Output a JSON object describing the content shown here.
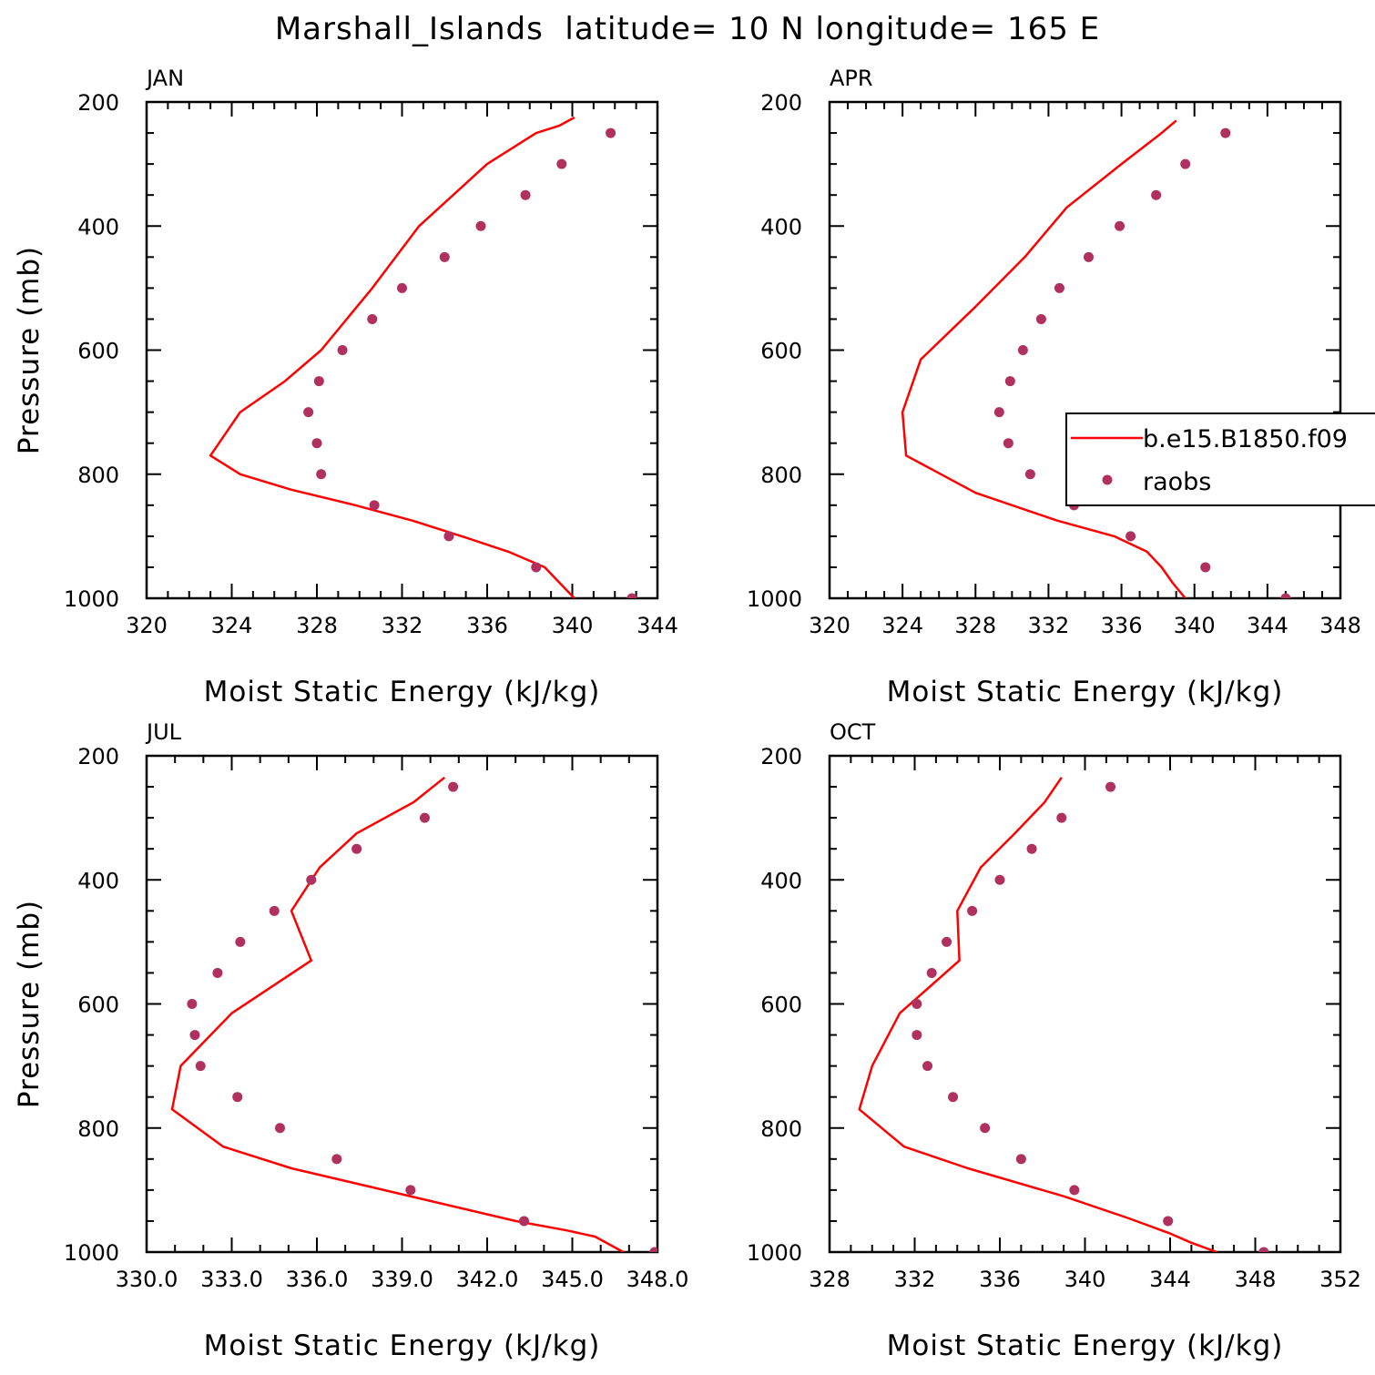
{
  "title": "Marshall_Islands  latitude= 10 N longitude= 165 E",
  "colors": {
    "model": "#ff0000",
    "obs": "#b03060"
  },
  "chart_data": [
    {
      "type": "scatter",
      "panel_label": "JAN",
      "xlabel": "Moist Static Energy (kJ/kg)",
      "ylabel": "Pressure (mb)",
      "xlim": [
        320,
        344
      ],
      "ylim": [
        1000,
        200
      ],
      "xticks": [
        "320",
        "324",
        "328",
        "332",
        "336",
        "340",
        "344"
      ],
      "yticks": [
        "200",
        "400",
        "600",
        "800",
        "1000"
      ],
      "x_minor": 1,
      "y_minor": 50,
      "legend": null,
      "series": [
        {
          "name": "b.e15.B1850.f09",
          "type": "line",
          "x": [
            340.1,
            339.4,
            338.7,
            337.0,
            334.8,
            332.5,
            329.8,
            326.8,
            324.4,
            323.0,
            324.4,
            326.5,
            328.2,
            330.6,
            332.8,
            336.0,
            338.3,
            339.4,
            340.1
          ],
          "y": [
            1000,
            975,
            950,
            925,
            900,
            875,
            850,
            825,
            800,
            770,
            700,
            650,
            600,
            500,
            400,
            300,
            250,
            238,
            225
          ]
        },
        {
          "name": "raobs",
          "type": "scatter",
          "x": [
            342.8,
            338.3,
            334.2,
            330.7,
            328.2,
            328.0,
            327.6,
            328.1,
            329.2,
            330.6,
            332.0,
            334.0,
            335.7,
            337.8,
            339.5,
            341.8
          ],
          "y": [
            1000,
            950,
            900,
            850,
            800,
            750,
            700,
            650,
            600,
            550,
            500,
            450,
            400,
            350,
            300,
            250
          ]
        }
      ]
    },
    {
      "type": "scatter",
      "panel_label": "APR",
      "xlabel": "Moist Static Energy (kJ/kg)",
      "ylabel": "",
      "xlim": [
        320,
        348
      ],
      "ylim": [
        1000,
        200
      ],
      "xticks": [
        "320",
        "324",
        "328",
        "332",
        "336",
        "340",
        "344",
        "348"
      ],
      "yticks": [
        "200",
        "400",
        "600",
        "800",
        "1000"
      ],
      "x_minor": 1,
      "y_minor": 50,
      "legend": {
        "placement": "right",
        "entries": [
          "b.e15.B1850.f09",
          "raobs"
        ]
      },
      "series": [
        {
          "name": "b.e15.B1850.f09",
          "type": "line",
          "x": [
            339.5,
            338.8,
            338.2,
            337.4,
            335.6,
            332.5,
            328.0,
            324.2,
            324.0,
            325.0,
            328.0,
            330.7,
            333.0,
            336.0,
            338.2,
            339.0
          ],
          "y": [
            1000,
            975,
            950,
            925,
            900,
            875,
            830,
            770,
            700,
            615,
            530,
            450,
            370,
            300,
            250,
            230
          ]
        },
        {
          "name": "raobs",
          "type": "scatter",
          "x": [
            345.0,
            340.6,
            336.5,
            333.4,
            331.0,
            329.8,
            329.3,
            329.9,
            330.6,
            331.6,
            332.6,
            334.2,
            335.9,
            337.9,
            339.5,
            341.7
          ],
          "y": [
            1000,
            950,
            900,
            850,
            800,
            750,
            700,
            650,
            600,
            550,
            500,
            450,
            400,
            350,
            300,
            250
          ]
        }
      ]
    },
    {
      "type": "scatter",
      "panel_label": "JUL",
      "xlabel": "Moist Static Energy (kJ/kg)",
      "ylabel": "Pressure (mb)",
      "xlim": [
        330,
        348
      ],
      "ylim": [
        1000,
        200
      ],
      "xticks": [
        "330.0",
        "333.0",
        "336.0",
        "339.0",
        "342.0",
        "345.0",
        "348.0"
      ],
      "yticks": [
        "200",
        "400",
        "600",
        "800",
        "1000"
      ],
      "x_minor": 1,
      "y_minor": 50,
      "legend": null,
      "series": [
        {
          "name": "b.e15.B1850.f09",
          "type": "line",
          "x": [
            346.8,
            345.8,
            344.8,
            343.0,
            335.1,
            332.7,
            330.9,
            331.2,
            333.0,
            335.8,
            335.1,
            336.1,
            337.4,
            339.4,
            340.5
          ],
          "y": [
            1000,
            975,
            965,
            950,
            865,
            830,
            770,
            700,
            615,
            530,
            450,
            380,
            325,
            275,
            235
          ]
        },
        {
          "name": "raobs",
          "type": "scatter",
          "x": [
            347.9,
            343.3,
            339.3,
            336.7,
            334.7,
            333.2,
            331.9,
            331.7,
            331.6,
            332.5,
            333.3,
            334.5,
            335.8,
            337.4,
            339.8,
            340.8
          ],
          "y": [
            1000,
            950,
            900,
            850,
            800,
            750,
            700,
            650,
            600,
            550,
            500,
            450,
            400,
            350,
            300,
            250
          ]
        }
      ]
    },
    {
      "type": "scatter",
      "panel_label": "OCT",
      "xlabel": "Moist Static Energy (kJ/kg)",
      "ylabel": "",
      "xlim": [
        328,
        352
      ],
      "ylim": [
        1000,
        200
      ],
      "xticks": [
        "328",
        "332",
        "336",
        "340",
        "344",
        "348",
        "352"
      ],
      "yticks": [
        "200",
        "400",
        "600",
        "800",
        "1000"
      ],
      "x_minor": 1,
      "y_minor": 50,
      "legend": null,
      "series": [
        {
          "name": "b.e15.B1850.f09",
          "type": "line",
          "x": [
            346.2,
            345.0,
            344.0,
            342.0,
            339.0,
            334.5,
            331.5,
            329.4,
            330.0,
            331.3,
            334.1,
            334.0,
            335.1,
            336.7,
            338.1,
            338.9
          ],
          "y": [
            1000,
            985,
            970,
            945,
            910,
            865,
            830,
            770,
            700,
            615,
            530,
            450,
            380,
            325,
            275,
            235
          ]
        },
        {
          "name": "raobs",
          "type": "scatter",
          "x": [
            348.4,
            343.9,
            339.5,
            337.0,
            335.3,
            333.8,
            332.6,
            332.1,
            332.1,
            332.8,
            333.5,
            334.7,
            336.0,
            337.5,
            338.9,
            341.2
          ],
          "y": [
            1000,
            950,
            900,
            850,
            800,
            750,
            700,
            650,
            600,
            550,
            500,
            450,
            400,
            350,
            300,
            250
          ]
        }
      ]
    }
  ]
}
